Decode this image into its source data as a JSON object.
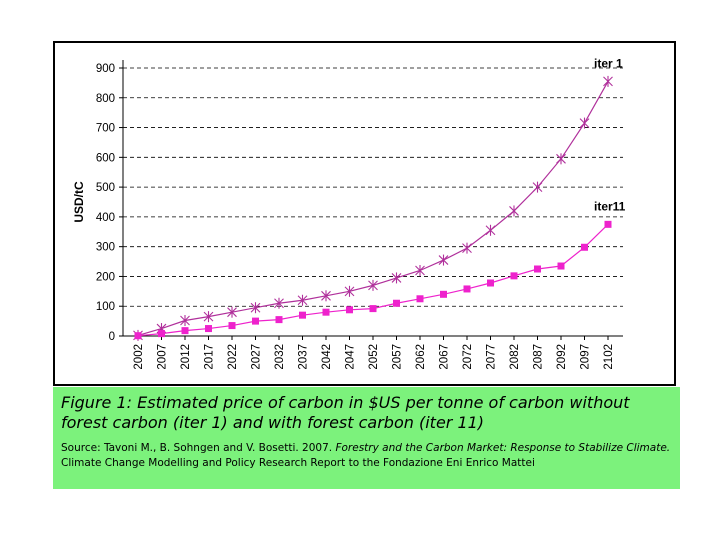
{
  "chart_data": {
    "type": "line",
    "ylabel": "USD/tC",
    "xlabel": "",
    "x": [
      "2002",
      "2007",
      "2012",
      "2017",
      "2022",
      "2027",
      "2032",
      "2037",
      "2042",
      "2047",
      "2052",
      "2057",
      "2062",
      "2067",
      "2072",
      "2077",
      "2082",
      "2087",
      "2092",
      "2097",
      "2102"
    ],
    "ylim": [
      0,
      900
    ],
    "yticks": [
      0,
      100,
      200,
      300,
      400,
      500,
      600,
      700,
      800,
      900
    ],
    "grid": "horizontal-dashed",
    "series": [
      {
        "name": "iter 1",
        "marker": "star",
        "color": "#b0309b",
        "values": [
          2,
          25,
          52,
          65,
          80,
          95,
          110,
          120,
          135,
          150,
          170,
          195,
          220,
          255,
          295,
          355,
          420,
          500,
          595,
          715,
          855
        ]
      },
      {
        "name": "iter11",
        "marker": "square",
        "color": "#ee22cc",
        "values": [
          1,
          8,
          18,
          25,
          35,
          50,
          55,
          70,
          80,
          88,
          92,
          110,
          125,
          140,
          158,
          178,
          202,
          225,
          235,
          298,
          375
        ]
      }
    ]
  },
  "caption": {
    "figure_label": "Figure 1",
    "figure_text": ": Estimated price of carbon in $US per tonne of carbon  without forest carbon (iter 1) and with forest carbon (iter 11)",
    "source_prefix": "Source: Tavoni M., B. Sohngen and V. Bosetti. 2007. ",
    "source_title": "Forestry and the Carbon Market: Response to Stabilize Climate.",
    "source_suffix": " Climate Change Modelling and Policy Research Report to the Fondazione Eni Enrico Mattei"
  }
}
